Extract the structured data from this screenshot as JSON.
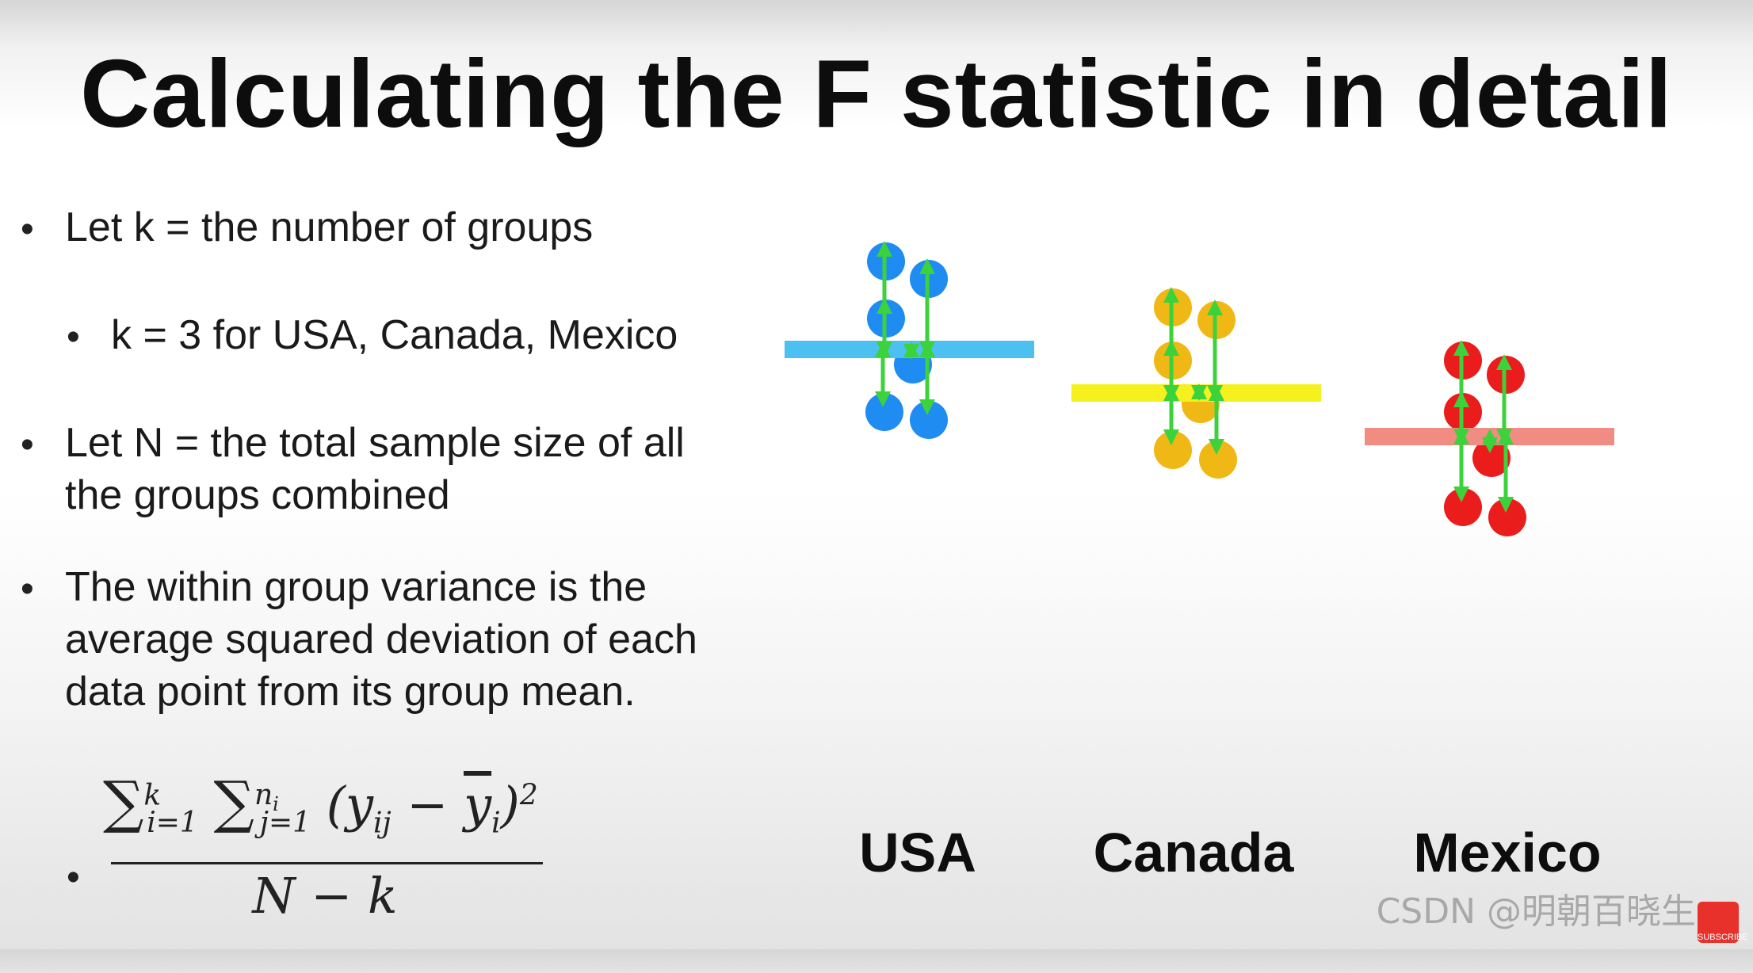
{
  "title": "Calculating the F statistic in detail",
  "bullets": [
    {
      "text": "Let k = the number of groups"
    },
    {
      "text": "k = 3 for USA, Canada, Mexico"
    },
    {
      "line1": "Let N = the total sample size of all",
      "line2": "the groups combined"
    },
    {
      "line1": "The within group variance is the",
      "line2": "average squared deviation of each",
      "line3": "data point from its group mean."
    }
  ],
  "formula": {
    "sum_symbol": "∑",
    "sum1_upper": "k",
    "sum1_lower": "i=1",
    "sum2_upper": "n",
    "sum2_upper_sub": "i",
    "sum2_lower": "j=1",
    "term": "(y",
    "term_sub": "ij",
    "minus": " − ",
    "mean": "y",
    "mean_sub": "i",
    "close": ")",
    "power": "2",
    "denominator": "N − k"
  },
  "groups": [
    {
      "label": "USA",
      "point_color": "#1e8cf0",
      "mean_color": "#4cc0f0"
    },
    {
      "label": "Canada",
      "point_color": "#f0b814",
      "mean_color": "#f5f01e"
    },
    {
      "label": "Mexico",
      "point_color": "#ea1c1c",
      "mean_color": "#f08c82"
    }
  ],
  "arrow_color": "#3cd23c",
  "watermark": "CSDN @明朝百晓生",
  "subscribe_label": "SUBSCRIBE"
}
